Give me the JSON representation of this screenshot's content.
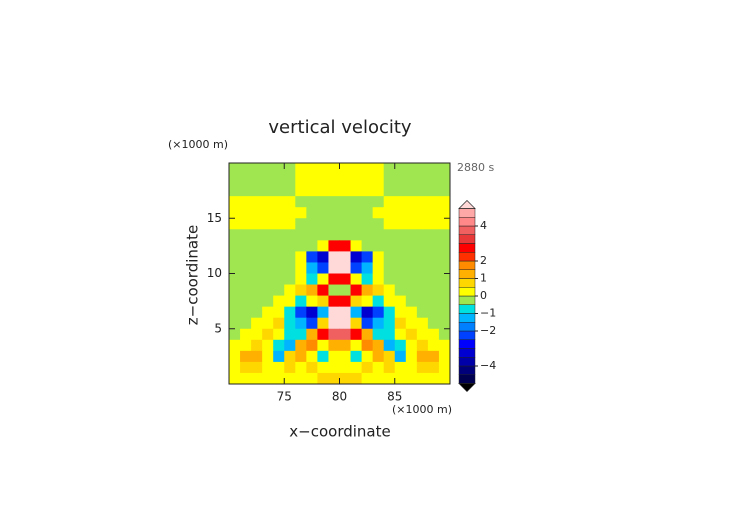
{
  "chart_data": {
    "type": "contour",
    "title": "vertical velocity",
    "time_label": "2880 s",
    "x_label": "x−coordinate",
    "y_label": "z−coordinate",
    "x_unit": "(×1000 m)",
    "y_unit": "(×1000 m)",
    "xlim": [
      70,
      90
    ],
    "ylim": [
      0,
      20
    ],
    "xticks": [
      75,
      80,
      85
    ],
    "yticks": [
      5,
      10,
      15
    ],
    "x": [
      70.5,
      71.5,
      72.5,
      73.5,
      74.5,
      75.5,
      76.5,
      77.5,
      78.5,
      79.5,
      80.5,
      81.5,
      82.5,
      83.5,
      84.5,
      85.5,
      86.5,
      87.5,
      88.5,
      89.5
    ],
    "y": [
      19.5,
      18.5,
      17.5,
      16.5,
      15.5,
      14.5,
      13.5,
      12.5,
      11.5,
      10.5,
      9.5,
      8.5,
      7.5,
      6.5,
      5.5,
      4.5,
      3.5,
      2.5,
      1.5,
      0.5
    ],
    "values": [
      [
        -0.2,
        -0.2,
        -0.2,
        -0.2,
        -0.2,
        -0.2,
        0.3,
        0.3,
        0.3,
        0.3,
        0.3,
        0.3,
        0.3,
        0.3,
        -0.2,
        -0.2,
        -0.2,
        -0.2,
        -0.2,
        -0.2
      ],
      [
        -0.2,
        -0.2,
        -0.2,
        -0.2,
        -0.2,
        -0.2,
        0.3,
        0.3,
        0.3,
        0.3,
        0.3,
        0.3,
        0.3,
        0.3,
        -0.2,
        -0.2,
        -0.2,
        -0.2,
        -0.2,
        -0.2
      ],
      [
        -0.2,
        -0.2,
        -0.2,
        -0.2,
        -0.2,
        -0.2,
        0.3,
        0.3,
        0.3,
        0.3,
        0.3,
        0.3,
        0.3,
        0.3,
        -0.2,
        -0.2,
        -0.2,
        -0.2,
        -0.2,
        -0.2
      ],
      [
        0.3,
        0.3,
        0.3,
        0.3,
        0.3,
        0.3,
        -0.2,
        -0.2,
        -0.2,
        -0.2,
        -0.2,
        -0.2,
        -0.2,
        -0.2,
        0.3,
        0.3,
        0.3,
        0.3,
        0.3,
        0.3
      ],
      [
        0.3,
        0.3,
        0.3,
        0.3,
        0.3,
        0.3,
        0.3,
        -0.2,
        -0.2,
        -0.2,
        -0.2,
        -0.2,
        -0.2,
        0.3,
        0.3,
        0.3,
        0.3,
        0.3,
        0.3,
        0.3
      ],
      [
        0.3,
        0.3,
        0.3,
        0.3,
        0.3,
        0.3,
        -0.2,
        -0.2,
        -0.2,
        -0.2,
        -0.2,
        -0.2,
        -0.2,
        -0.2,
        0.3,
        0.3,
        0.3,
        0.3,
        0.3,
        0.3
      ],
      [
        -0.2,
        -0.2,
        -0.2,
        -0.2,
        -0.2,
        -0.2,
        -0.2,
        -0.2,
        -0.2,
        -0.2,
        -0.2,
        -0.2,
        -0.2,
        -0.2,
        -0.2,
        -0.2,
        -0.2,
        -0.2,
        -0.2,
        -0.2
      ],
      [
        -0.2,
        -0.2,
        -0.2,
        -0.2,
        -0.2,
        -0.2,
        -0.2,
        -0.2,
        0.3,
        2.5,
        2.5,
        0.3,
        -0.2,
        -0.2,
        -0.2,
        -0.2,
        -0.2,
        -0.2,
        -0.2,
        -0.2
      ],
      [
        -0.2,
        -0.2,
        -0.2,
        -0.2,
        -0.2,
        -0.2,
        0.3,
        -2.2,
        -3.2,
        5.5,
        5.5,
        -3.2,
        -2.2,
        0.3,
        -0.2,
        -0.2,
        -0.2,
        -0.2,
        -0.2,
        -0.2
      ],
      [
        -0.2,
        -0.2,
        -0.2,
        -0.2,
        -0.2,
        -0.2,
        0.3,
        -1.3,
        -2.2,
        5.5,
        5.5,
        -2.2,
        -1.3,
        0.3,
        -0.2,
        -0.2,
        -0.2,
        -0.2,
        -0.2,
        -0.2
      ],
      [
        -0.2,
        -0.2,
        -0.2,
        -0.2,
        -0.2,
        -0.2,
        0.3,
        -0.8,
        0.3,
        2.5,
        2.5,
        0.3,
        -0.8,
        0.3,
        -0.2,
        -0.2,
        -0.2,
        -0.2,
        -0.2,
        -0.2
      ],
      [
        -0.2,
        -0.2,
        -0.2,
        -0.2,
        -0.2,
        0.3,
        0.8,
        1.2,
        2.5,
        -0.2,
        -0.2,
        2.5,
        1.2,
        0.8,
        0.3,
        -0.2,
        -0.2,
        -0.2,
        -0.2,
        -0.2
      ],
      [
        -0.2,
        -0.2,
        -0.2,
        -0.2,
        0.3,
        0.3,
        -0.8,
        0.3,
        0.8,
        2.5,
        2.5,
        0.8,
        0.3,
        -0.8,
        0.3,
        0.3,
        -0.2,
        -0.2,
        -0.2,
        -0.2
      ],
      [
        -0.2,
        -0.2,
        -0.2,
        0.3,
        0.3,
        -0.8,
        -2.2,
        -3.2,
        -1.3,
        5.5,
        5.5,
        -1.3,
        -3.2,
        -2.2,
        -0.8,
        0.3,
        0.3,
        -0.2,
        -0.2,
        -0.2
      ],
      [
        -0.2,
        -0.2,
        0.3,
        0.3,
        0.8,
        -0.8,
        -1.3,
        -2.2,
        0.8,
        5.5,
        5.5,
        0.8,
        -2.2,
        -1.3,
        -0.8,
        0.8,
        0.3,
        0.3,
        -0.2,
        -0.2
      ],
      [
        -0.2,
        0.3,
        0.3,
        0.8,
        0.3,
        -0.8,
        -0.8,
        1.2,
        2.5,
        3.7,
        3.7,
        2.5,
        1.2,
        -0.8,
        -0.8,
        0.3,
        0.8,
        0.3,
        0.3,
        -0.2
      ],
      [
        0.3,
        0.3,
        0.8,
        0.3,
        -0.8,
        -1.3,
        1.2,
        1.7,
        0.3,
        1.2,
        1.2,
        0.3,
        1.7,
        1.2,
        -1.3,
        -0.8,
        0.3,
        0.8,
        0.3,
        0.3
      ],
      [
        0.3,
        1.2,
        1.2,
        0.3,
        -1.3,
        0.8,
        1.2,
        0.3,
        -0.8,
        0.3,
        0.3,
        -0.8,
        0.3,
        1.2,
        0.8,
        -1.3,
        0.3,
        1.2,
        1.2,
        0.3
      ],
      [
        0.3,
        0.8,
        0.8,
        0.3,
        0.3,
        0.8,
        0.3,
        0.8,
        0.3,
        0.3,
        0.3,
        0.3,
        0.8,
        0.3,
        0.8,
        0.3,
        0.3,
        0.8,
        0.8,
        0.3
      ],
      [
        0.3,
        0.3,
        0.3,
        0.3,
        0.3,
        0.3,
        0.3,
        0.3,
        0.8,
        0.8,
        0.8,
        0.8,
        0.3,
        0.3,
        0.3,
        0.3,
        0.3,
        0.3,
        0.3,
        0.3
      ]
    ],
    "colorbar": {
      "levels": [
        -5,
        -4.5,
        -4,
        -3.5,
        -3,
        -2.5,
        -2,
        -1.5,
        -1,
        -0.5,
        0,
        0.5,
        1,
        1.5,
        2,
        2.5,
        3,
        3.5,
        4,
        4.5,
        5
      ],
      "colors": [
        "#000000",
        "#000050",
        "#00007a",
        "#0000a8",
        "#0000d0",
        "#0000ff",
        "#0040ff",
        "#0080ff",
        "#00b4ff",
        "#00e0e0",
        "#a0e650",
        "#ffff00",
        "#ffd700",
        "#ffb000",
        "#ff8c00",
        "#ff3000",
        "#ff0000",
        "#e83838",
        "#f06060",
        "#ff8888",
        "#ffa8a8",
        "#ffd8d8"
      ],
      "ticks": [
        4,
        2,
        1,
        0,
        {
          "value": -1,
          "label": "−1"
        },
        {
          "value": -2,
          "label": "−2"
        },
        {
          "value": -4,
          "label": "−4"
        }
      ]
    }
  }
}
